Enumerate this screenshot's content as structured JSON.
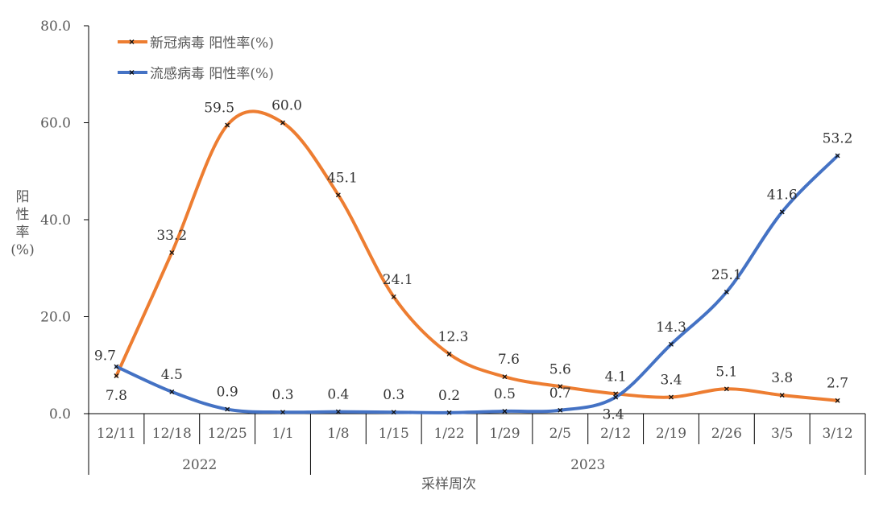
{
  "chart_data": {
    "type": "line",
    "title": "",
    "xlabel": "采样周次",
    "ylabel": "阳性率(%)",
    "ylim": [
      0,
      80
    ],
    "yticks": [
      "0.0",
      "20.0",
      "40.0",
      "60.0",
      "80.0"
    ],
    "categories": [
      "12/11",
      "12/18",
      "12/25",
      "1/1",
      "1/8",
      "1/15",
      "1/22",
      "1/29",
      "2/5",
      "2/12",
      "2/19",
      "2/26",
      "3/5",
      "3/12"
    ],
    "year_groups": [
      {
        "label": "2022",
        "count": 4
      },
      {
        "label": "2023",
        "count": 10
      }
    ],
    "legend_position": "top-left",
    "series": [
      {
        "name": "新冠病毒 阳性率(%)",
        "color": "#ED7D31",
        "values": [
          7.8,
          33.2,
          59.5,
          60.0,
          45.1,
          24.1,
          12.3,
          7.6,
          5.6,
          4.1,
          3.4,
          5.1,
          3.8,
          2.7
        ],
        "labels": [
          "7.8",
          "33.2",
          "59.5",
          "60.0",
          "45.1",
          "24.1",
          "12.3",
          "7.6",
          "5.6",
          "4.1",
          "3.4",
          "5.1",
          "3.8",
          "2.7"
        ]
      },
      {
        "name": "流感病毒 阳性率(%)",
        "color": "#4472C4",
        "values": [
          9.7,
          4.5,
          0.9,
          0.3,
          0.4,
          0.3,
          0.2,
          0.5,
          0.7,
          3.4,
          14.3,
          25.1,
          41.6,
          53.2
        ],
        "labels": [
          "9.7",
          "4.5",
          "0.9",
          "0.3",
          "0.4",
          "0.3",
          "0.2",
          "0.5",
          "0.7",
          "3.4",
          "14.3",
          "25.1",
          "41.6",
          "53.2"
        ]
      }
    ]
  }
}
